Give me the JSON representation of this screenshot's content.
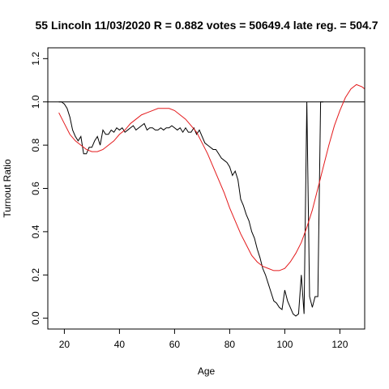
{
  "chart_data": {
    "type": "line",
    "title": "55 Lincoln 11/03/2020 R = 0.882 votes = 50649.4 late reg. = 504.7",
    "xlabel": "Age",
    "ylabel": "Turnout Ratio",
    "xlim": [
      14,
      129
    ],
    "ylim": [
      -0.05,
      1.25
    ],
    "x_ticks": [
      20,
      40,
      60,
      80,
      100,
      120
    ],
    "y_ticks": [
      0.0,
      0.2,
      0.4,
      0.6,
      0.8,
      1.0,
      1.2
    ],
    "x_tick_labels": [
      "20",
      "40",
      "60",
      "80",
      "100",
      "120"
    ],
    "y_tick_labels": [
      "0.0",
      "0.2",
      "0.4",
      "0.6",
      "0.8",
      "1.0",
      "1.2"
    ],
    "reference_line": {
      "y": 1.0,
      "color": "#000000"
    },
    "grid": false,
    "series": [
      {
        "color": "#000000",
        "x": [
          18,
          19,
          20,
          21,
          22,
          23,
          24,
          25,
          26,
          27,
          28,
          29,
          30,
          31,
          32,
          33,
          34,
          35,
          36,
          37,
          38,
          39,
          40,
          41,
          42,
          43,
          44,
          45,
          46,
          47,
          48,
          49,
          50,
          51,
          52,
          53,
          54,
          55,
          56,
          57,
          58,
          59,
          60,
          61,
          62,
          63,
          64,
          65,
          66,
          67,
          68,
          69,
          70,
          71,
          72,
          73,
          74,
          75,
          76,
          77,
          78,
          79,
          80,
          81,
          82,
          83,
          84,
          85,
          86,
          87,
          88,
          89,
          90,
          91,
          92,
          93,
          94,
          95,
          96,
          97,
          98,
          99,
          100,
          101,
          102,
          103,
          104,
          105,
          106,
          107,
          108,
          109,
          110,
          111,
          112,
          113,
          114
        ],
        "y": [
          1.0,
          1.0,
          0.99,
          0.97,
          0.93,
          0.87,
          0.84,
          0.82,
          0.84,
          0.76,
          0.76,
          0.79,
          0.79,
          0.82,
          0.84,
          0.8,
          0.87,
          0.85,
          0.85,
          0.87,
          0.86,
          0.88,
          0.87,
          0.88,
          0.86,
          0.87,
          0.88,
          0.89,
          0.87,
          0.88,
          0.89,
          0.9,
          0.87,
          0.88,
          0.88,
          0.87,
          0.87,
          0.88,
          0.87,
          0.88,
          0.88,
          0.89,
          0.88,
          0.87,
          0.88,
          0.86,
          0.88,
          0.86,
          0.86,
          0.88,
          0.85,
          0.87,
          0.84,
          0.81,
          0.8,
          0.79,
          0.78,
          0.78,
          0.76,
          0.74,
          0.73,
          0.72,
          0.7,
          0.66,
          0.68,
          0.64,
          0.55,
          0.52,
          0.48,
          0.45,
          0.4,
          0.37,
          0.32,
          0.28,
          0.23,
          0.2,
          0.16,
          0.12,
          0.08,
          0.07,
          0.05,
          0.04,
          0.13,
          0.08,
          0.05,
          0.02,
          0.01,
          0.02,
          0.2,
          0.02,
          1.0,
          0.1,
          0.05,
          0.1,
          0.1,
          1.0,
          1.0
        ]
      },
      {
        "color": "#e41a1c",
        "x": [
          18,
          20,
          22,
          24,
          26,
          28,
          30,
          32,
          34,
          36,
          38,
          40,
          42,
          44,
          46,
          48,
          50,
          52,
          54,
          56,
          58,
          60,
          62,
          64,
          66,
          68,
          70,
          72,
          74,
          76,
          78,
          80,
          82,
          84,
          86,
          88,
          90,
          92,
          94,
          96,
          98,
          100,
          102,
          104,
          106,
          108,
          110,
          112,
          114,
          116,
          118,
          120,
          122,
          124,
          126,
          128,
          129
        ],
        "y": [
          0.95,
          0.9,
          0.85,
          0.82,
          0.8,
          0.78,
          0.77,
          0.77,
          0.78,
          0.8,
          0.82,
          0.85,
          0.87,
          0.9,
          0.92,
          0.94,
          0.95,
          0.96,
          0.97,
          0.97,
          0.97,
          0.96,
          0.94,
          0.92,
          0.89,
          0.86,
          0.81,
          0.76,
          0.7,
          0.64,
          0.58,
          0.51,
          0.45,
          0.39,
          0.34,
          0.29,
          0.26,
          0.24,
          0.23,
          0.22,
          0.22,
          0.23,
          0.26,
          0.3,
          0.35,
          0.42,
          0.5,
          0.6,
          0.7,
          0.8,
          0.89,
          0.96,
          1.02,
          1.06,
          1.08,
          1.07,
          1.06
        ]
      }
    ]
  }
}
